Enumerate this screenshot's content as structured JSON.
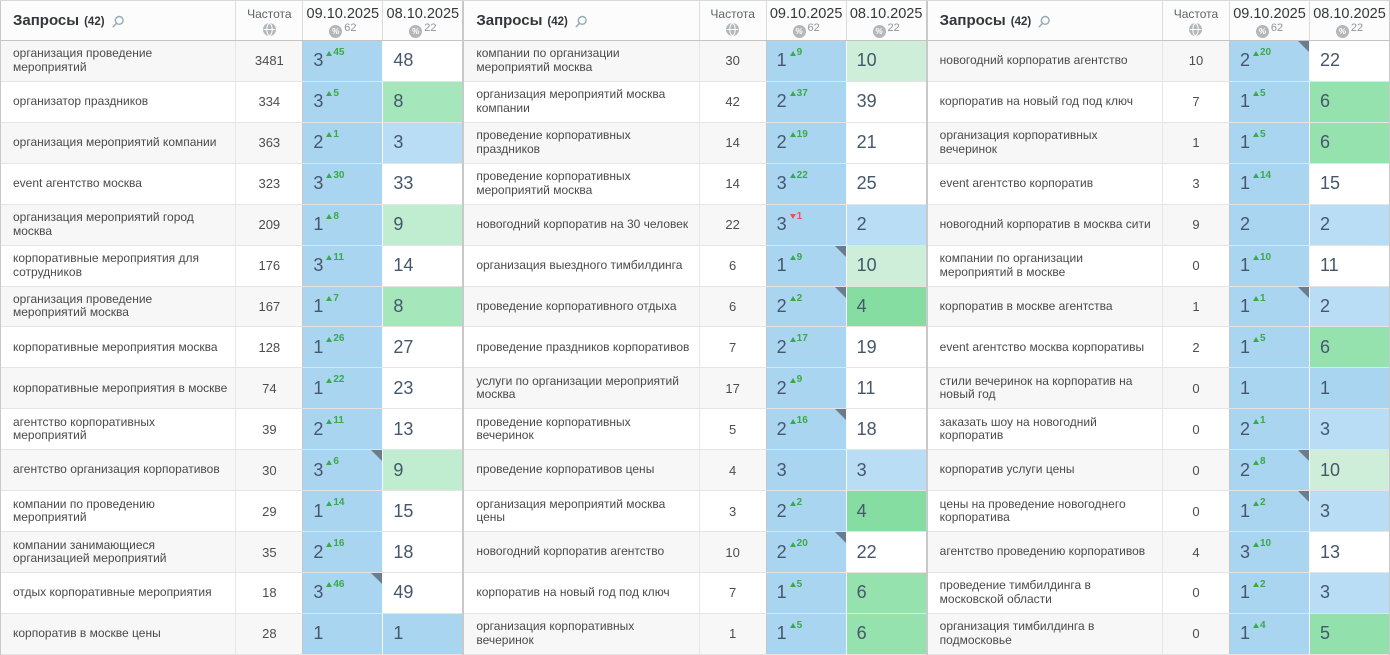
{
  "header": {
    "queries_label": "Запросы",
    "queries_count": "(42)",
    "frequency_label": "Частота",
    "date_columns": [
      {
        "date": "09.10.2025",
        "percent": "62"
      },
      {
        "date": "08.10.2025",
        "percent": "22"
      }
    ],
    "icons": {
      "search": "search-icon",
      "globe": "globe-icon",
      "percent": "percent-icon"
    }
  },
  "colors": {
    "blue": "#aad5f0",
    "blue_light": "#b9ddf4",
    "green_map": {
      "4": "#86dda2",
      "5": "#92e1ac",
      "6": "#95e2ae",
      "8": "#a5e7bb",
      "9": "#c0edcf",
      "10": "#cfeeda"
    },
    "white": "#ffffff",
    "stripe": "#f7f7f7",
    "change_up": "#3aaa46",
    "change_down": "#e25555",
    "corner_marker": "#6b7d8c",
    "position_text": "#45576b"
  },
  "tables": [
    {
      "rows": [
        {
          "query": "организация проведение мероприятий",
          "freq": "3481",
          "pos1": "3",
          "change": "45",
          "dir": "up",
          "corner": false,
          "pos2": "48"
        },
        {
          "query": "организатор праздников",
          "freq": "334",
          "pos1": "3",
          "change": "5",
          "dir": "up",
          "corner": false,
          "pos2": "8"
        },
        {
          "query": "организация мероприятий компании",
          "freq": "363",
          "pos1": "2",
          "change": "1",
          "dir": "up",
          "corner": false,
          "pos2": "3"
        },
        {
          "query": "event агентство москва",
          "freq": "323",
          "pos1": "3",
          "change": "30",
          "dir": "up",
          "corner": false,
          "pos2": "33"
        },
        {
          "query": "организация мероприятий город москва",
          "freq": "209",
          "pos1": "1",
          "change": "8",
          "dir": "up",
          "corner": false,
          "pos2": "9"
        },
        {
          "query": "корпоративные мероприятия для сотрудников",
          "freq": "176",
          "pos1": "3",
          "change": "11",
          "dir": "up",
          "corner": false,
          "pos2": "14"
        },
        {
          "query": "организация проведение мероприятий москва",
          "freq": "167",
          "pos1": "1",
          "change": "7",
          "dir": "up",
          "corner": false,
          "pos2": "8"
        },
        {
          "query": "корпоративные мероприятия москва",
          "freq": "128",
          "pos1": "1",
          "change": "26",
          "dir": "up",
          "corner": false,
          "pos2": "27"
        },
        {
          "query": "корпоративные мероприятия в москве",
          "freq": "74",
          "pos1": "1",
          "change": "22",
          "dir": "up",
          "corner": false,
          "pos2": "23"
        },
        {
          "query": "агентство корпоративных мероприятий",
          "freq": "39",
          "pos1": "2",
          "change": "11",
          "dir": "up",
          "corner": false,
          "pos2": "13"
        },
        {
          "query": "агентство организация корпоративов",
          "freq": "30",
          "pos1": "3",
          "change": "6",
          "dir": "up",
          "corner": true,
          "pos2": "9"
        },
        {
          "query": "компании по проведению мероприятий",
          "freq": "29",
          "pos1": "1",
          "change": "14",
          "dir": "up",
          "corner": false,
          "pos2": "15"
        },
        {
          "query": "компании занимающиеся организацией мероприятий",
          "freq": "35",
          "pos1": "2",
          "change": "16",
          "dir": "up",
          "corner": false,
          "pos2": "18"
        },
        {
          "query": "отдых корпоративные мероприятия",
          "freq": "18",
          "pos1": "3",
          "change": "46",
          "dir": "up",
          "corner": true,
          "pos2": "49"
        },
        {
          "query": "корпоратив в москве цены",
          "freq": "28",
          "pos1": "1",
          "change": "",
          "dir": "",
          "corner": false,
          "pos2": "1"
        }
      ]
    },
    {
      "rows": [
        {
          "query": "компании по организации мероприятий москва",
          "freq": "30",
          "pos1": "1",
          "change": "9",
          "dir": "up",
          "corner": false,
          "pos2": "10"
        },
        {
          "query": "организация мероприятий москва компании",
          "freq": "42",
          "pos1": "2",
          "change": "37",
          "dir": "up",
          "corner": false,
          "pos2": "39"
        },
        {
          "query": "проведение корпоративных праздников",
          "freq": "14",
          "pos1": "2",
          "change": "19",
          "dir": "up",
          "corner": false,
          "pos2": "21"
        },
        {
          "query": "проведение корпоративных мероприятий москва",
          "freq": "14",
          "pos1": "3",
          "change": "22",
          "dir": "up",
          "corner": false,
          "pos2": "25"
        },
        {
          "query": "новогодний корпоратив на 30 человек",
          "freq": "22",
          "pos1": "3",
          "change": "1",
          "dir": "down",
          "corner": false,
          "pos2": "2"
        },
        {
          "query": "организация выездного тимбилдинга",
          "freq": "6",
          "pos1": "1",
          "change": "9",
          "dir": "up",
          "corner": true,
          "pos2": "10"
        },
        {
          "query": "проведение корпоративного отдыха",
          "freq": "6",
          "pos1": "2",
          "change": "2",
          "dir": "up",
          "corner": true,
          "pos2": "4"
        },
        {
          "query": "проведение праздников корпоративов",
          "freq": "7",
          "pos1": "2",
          "change": "17",
          "dir": "up",
          "corner": false,
          "pos2": "19"
        },
        {
          "query": "услуги по организации мероприятий москва",
          "freq": "17",
          "pos1": "2",
          "change": "9",
          "dir": "up",
          "corner": false,
          "pos2": "11"
        },
        {
          "query": "проведение корпоративных вечеринок",
          "freq": "5",
          "pos1": "2",
          "change": "16",
          "dir": "up",
          "corner": true,
          "pos2": "18"
        },
        {
          "query": "проведение корпоративов цены",
          "freq": "4",
          "pos1": "3",
          "change": "",
          "dir": "",
          "corner": false,
          "pos2": "3"
        },
        {
          "query": "организация мероприятий москва цены",
          "freq": "3",
          "pos1": "2",
          "change": "2",
          "dir": "up",
          "corner": false,
          "pos2": "4"
        },
        {
          "query": "новогодний корпоратив агентство",
          "freq": "10",
          "pos1": "2",
          "change": "20",
          "dir": "up",
          "corner": true,
          "pos2": "22"
        },
        {
          "query": "корпоратив на новый год под ключ",
          "freq": "7",
          "pos1": "1",
          "change": "5",
          "dir": "up",
          "corner": false,
          "pos2": "6"
        },
        {
          "query": "организация корпоративных вечеринок",
          "freq": "1",
          "pos1": "1",
          "change": "5",
          "dir": "up",
          "corner": false,
          "pos2": "6"
        }
      ]
    },
    {
      "rows": [
        {
          "query": "новогодний корпоратив агентство",
          "freq": "10",
          "pos1": "2",
          "change": "20",
          "dir": "up",
          "corner": true,
          "pos2": "22"
        },
        {
          "query": "корпоратив на новый год под ключ",
          "freq": "7",
          "pos1": "1",
          "change": "5",
          "dir": "up",
          "corner": false,
          "pos2": "6"
        },
        {
          "query": "организация корпоративных вечеринок",
          "freq": "1",
          "pos1": "1",
          "change": "5",
          "dir": "up",
          "corner": false,
          "pos2": "6"
        },
        {
          "query": "event агентство корпоратив",
          "freq": "3",
          "pos1": "1",
          "change": "14",
          "dir": "up",
          "corner": false,
          "pos2": "15"
        },
        {
          "query": "новогодний корпоратив в москва сити",
          "freq": "9",
          "pos1": "2",
          "change": "",
          "dir": "",
          "corner": false,
          "pos2": "2"
        },
        {
          "query": "компании по организации мероприятий в москве",
          "freq": "0",
          "pos1": "1",
          "change": "10",
          "dir": "up",
          "corner": false,
          "pos2": "11"
        },
        {
          "query": "корпоратив в москве агентства",
          "freq": "1",
          "pos1": "1",
          "change": "1",
          "dir": "up",
          "corner": true,
          "pos2": "2"
        },
        {
          "query": "event агентство москва корпоративы",
          "freq": "2",
          "pos1": "1",
          "change": "5",
          "dir": "up",
          "corner": false,
          "pos2": "6"
        },
        {
          "query": "стили вечеринок на корпоратив на новый год",
          "freq": "0",
          "pos1": "1",
          "change": "",
          "dir": "",
          "corner": false,
          "pos2": "1"
        },
        {
          "query": "заказать шоу на новогодний корпоратив",
          "freq": "0",
          "pos1": "2",
          "change": "1",
          "dir": "up",
          "corner": false,
          "pos2": "3"
        },
        {
          "query": "корпоратив услуги цены",
          "freq": "0",
          "pos1": "2",
          "change": "8",
          "dir": "up",
          "corner": true,
          "pos2": "10"
        },
        {
          "query": "цены на проведение новогоднего корпоратива",
          "freq": "0",
          "pos1": "1",
          "change": "2",
          "dir": "up",
          "corner": true,
          "pos2": "3"
        },
        {
          "query": "агентство проведению корпоративов",
          "freq": "4",
          "pos1": "3",
          "change": "10",
          "dir": "up",
          "corner": false,
          "pos2": "13"
        },
        {
          "query": "проведение тимбилдинга в московской области",
          "freq": "0",
          "pos1": "1",
          "change": "2",
          "dir": "up",
          "corner": false,
          "pos2": "3"
        },
        {
          "query": "организация тимбилдинга в подмосковье",
          "freq": "0",
          "pos1": "1",
          "change": "4",
          "dir": "up",
          "corner": false,
          "pos2": "5"
        }
      ]
    }
  ]
}
